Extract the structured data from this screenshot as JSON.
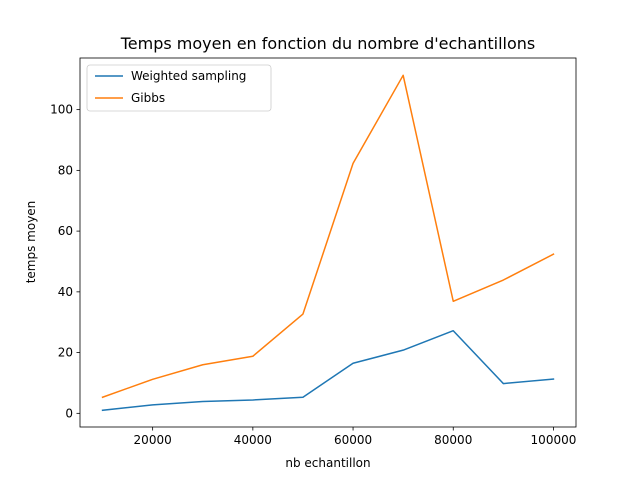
{
  "chart_data": {
    "type": "line",
    "title": "Temps moyen en fonction du nombre d'echantillons",
    "xlabel": "nb echantillon",
    "ylabel": "temps moyen",
    "x": [
      10000,
      20000,
      30000,
      40000,
      50000,
      60000,
      70000,
      80000,
      90000,
      100000
    ],
    "xlim": [
      5500,
      104500
    ],
    "ylim": [
      -4.5,
      117
    ],
    "xticks": [
      20000,
      40000,
      60000,
      80000,
      100000
    ],
    "yticks": [
      0,
      20,
      40,
      60,
      80,
      100
    ],
    "grid": false,
    "legend_position": "top-left",
    "series": [
      {
        "name": "Weighted sampling",
        "color": "#1f77b4",
        "values": [
          1.0,
          2.8,
          3.9,
          4.4,
          5.3,
          16.5,
          20.8,
          27.2,
          9.8,
          11.3
        ]
      },
      {
        "name": "Gibbs",
        "color": "#ff7f0e",
        "values": [
          5.3,
          11.2,
          16.0,
          18.8,
          32.7,
          82.3,
          111.3,
          36.9,
          43.9,
          52.4
        ]
      }
    ]
  }
}
